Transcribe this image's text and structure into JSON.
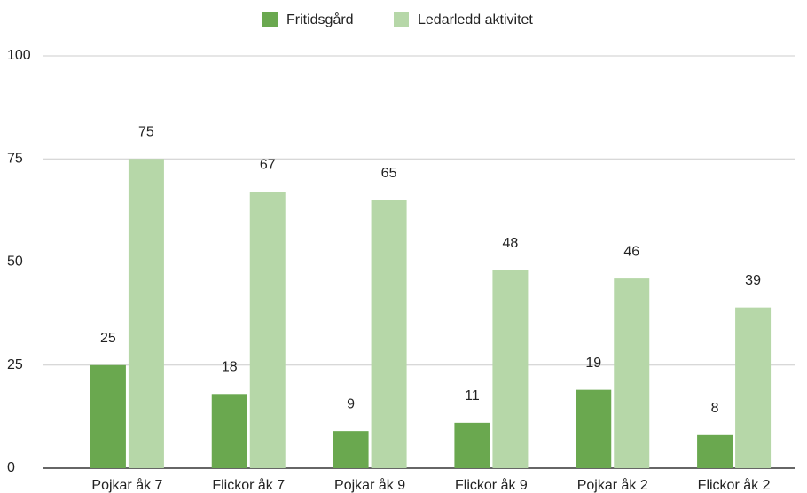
{
  "chart_data": {
    "type": "bar",
    "categories": [
      "Pojkar åk 7",
      "Flickor åk 7",
      "Pojkar åk 9",
      "Flickor åk 9",
      "Pojkar åk 2",
      "Flickor åk 2"
    ],
    "series": [
      {
        "name": "Fritidsgård",
        "color": "#6aa84f",
        "values": [
          25,
          18,
          9,
          11,
          19,
          8
        ]
      },
      {
        "name": "Ledarledd aktivitet",
        "color": "#b6d7a8",
        "values": [
          75,
          67,
          65,
          48,
          46,
          39
        ]
      }
    ],
    "ylim": [
      0,
      100
    ],
    "yticks": [
      0,
      25,
      50,
      75,
      100
    ],
    "grid": true,
    "legend": "top"
  }
}
